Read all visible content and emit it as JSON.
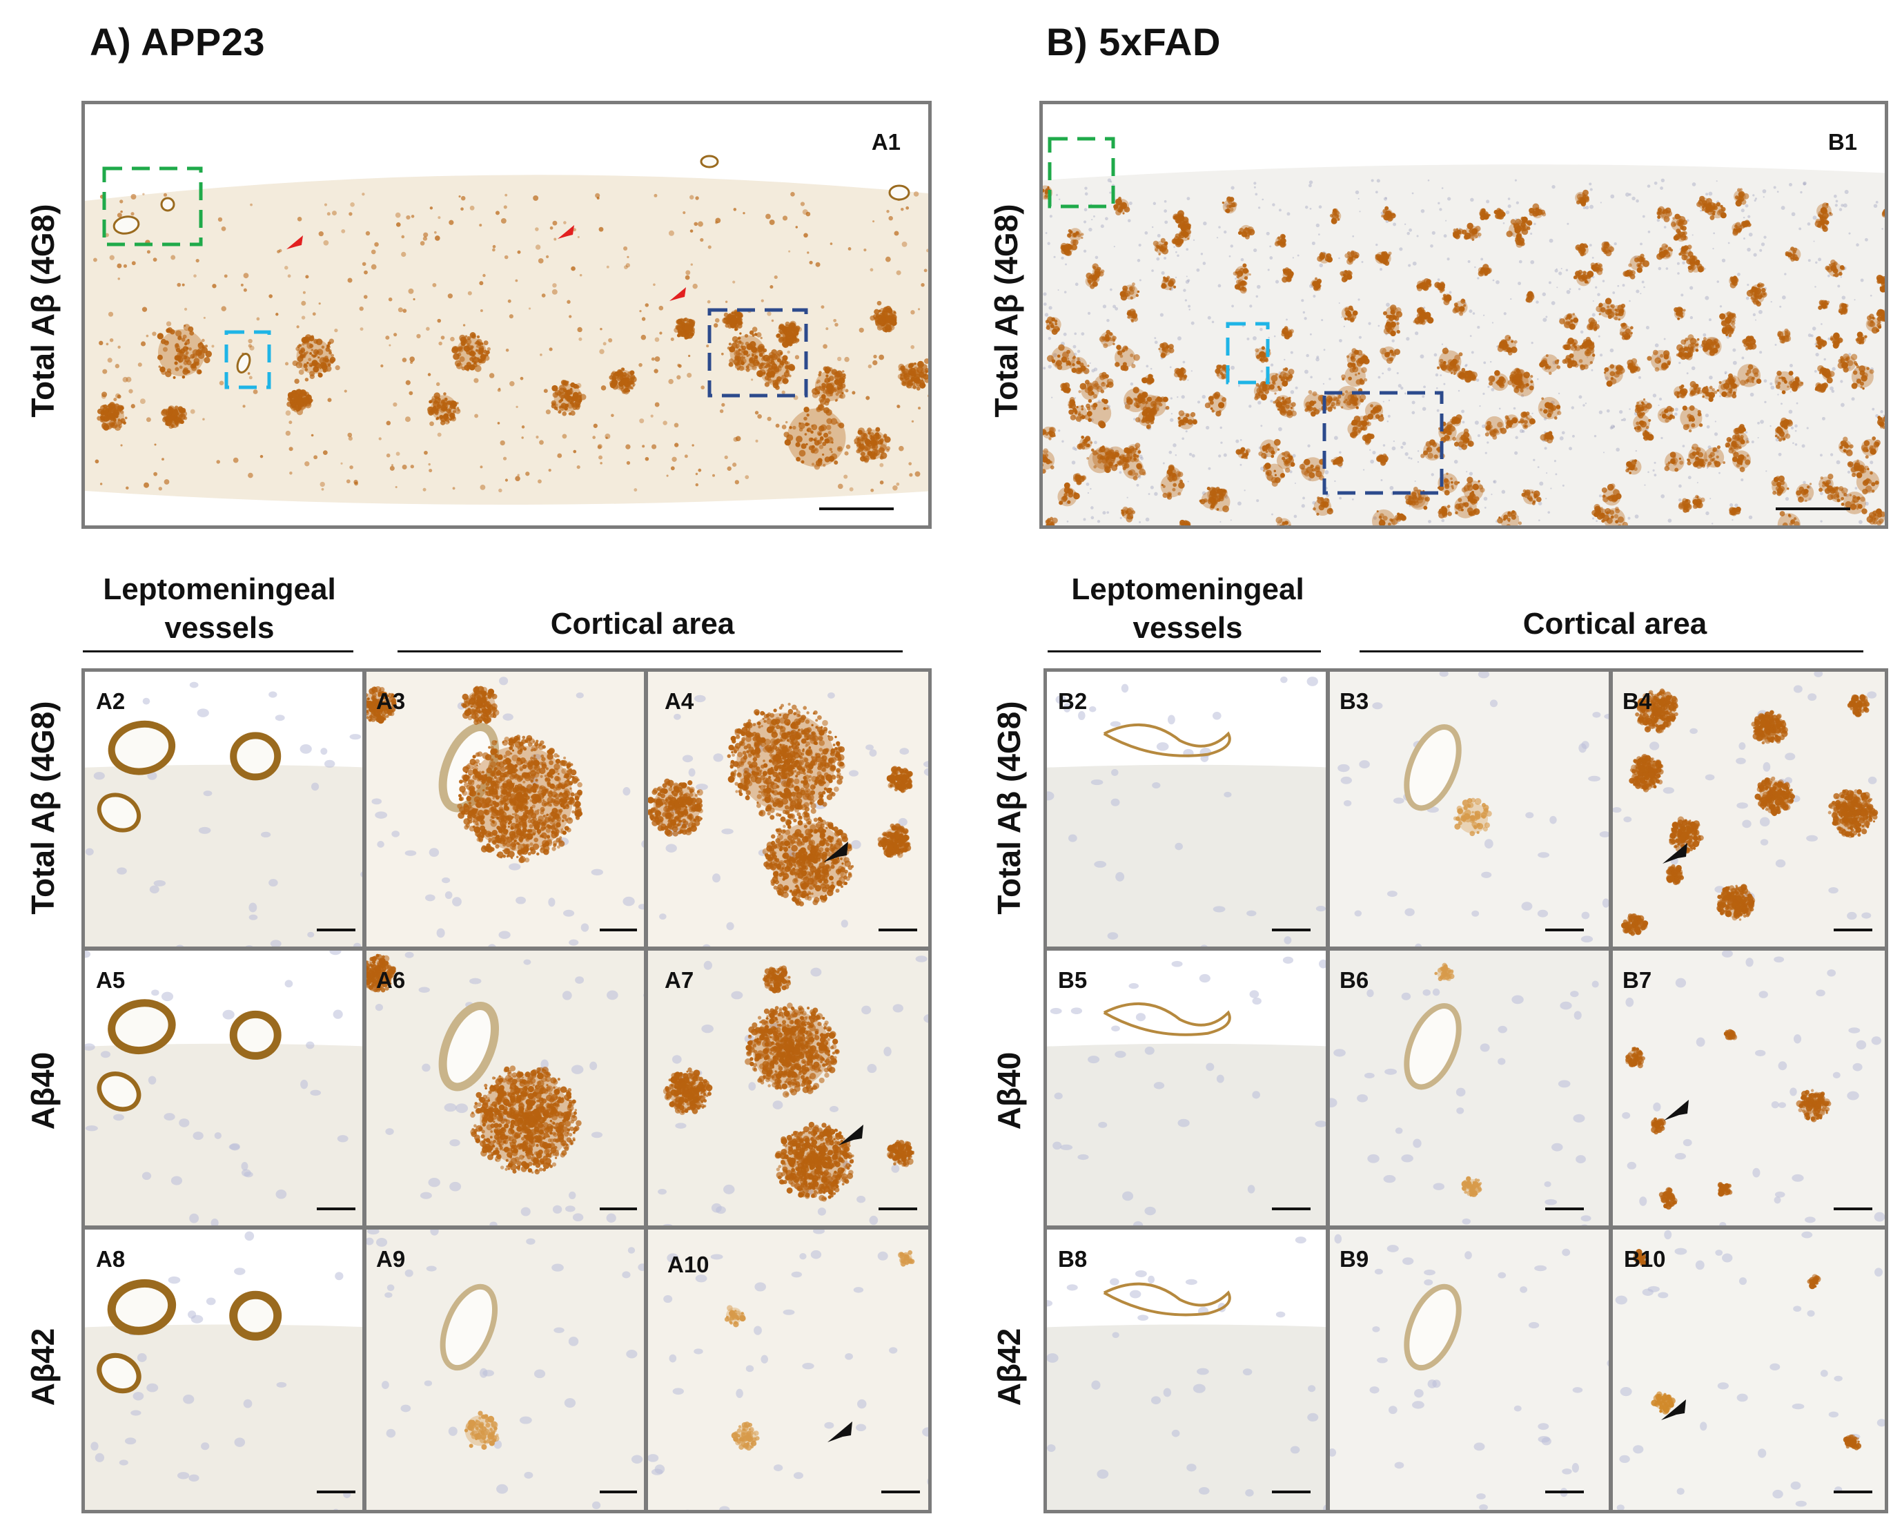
{
  "panel_groups": [
    {
      "title": "A) APP23",
      "overview": {
        "label": "A1",
        "ylabel": "Total Aβ (4G8)"
      },
      "headers": {
        "vessels": "Leptomeningeal vessels",
        "cortical": "Cortical area"
      },
      "rows": [
        {
          "label": "Total Aβ (4G8)",
          "panels": [
            "A2",
            "A3",
            "A4"
          ]
        },
        {
          "label": "Aβ40",
          "panels": [
            "A5",
            "A6",
            "A7"
          ]
        },
        {
          "label": "Aβ42",
          "panels": [
            "A8",
            "A9",
            "A10"
          ]
        }
      ]
    },
    {
      "title": "B) 5xFAD",
      "overview": {
        "label": "B1",
        "ylabel": "Total Aβ (4G8)"
      },
      "headers": {
        "vessels": "Leptomeningeal vessels",
        "cortical": "Cortical area"
      },
      "rows": [
        {
          "label": "Total Aβ (4G8)",
          "panels": [
            "B2",
            "B3",
            "B4"
          ]
        },
        {
          "label": "Aβ40",
          "panels": [
            "B5",
            "B6",
            "B7"
          ]
        },
        {
          "label": "Aβ42",
          "panels": [
            "B8",
            "B9",
            "B10"
          ]
        }
      ]
    }
  ],
  "colors": {
    "border": "#7b7b7b",
    "tissue": "#f3ebdc",
    "stain": "#b8620f",
    "nuclei": "#b9bdd8",
    "box_green": "#1faa4a",
    "box_cyan": "#1fb4e6",
    "box_navy": "#2c4a8c",
    "arrow_red": "#e22020",
    "arrow_black": "#111111"
  }
}
